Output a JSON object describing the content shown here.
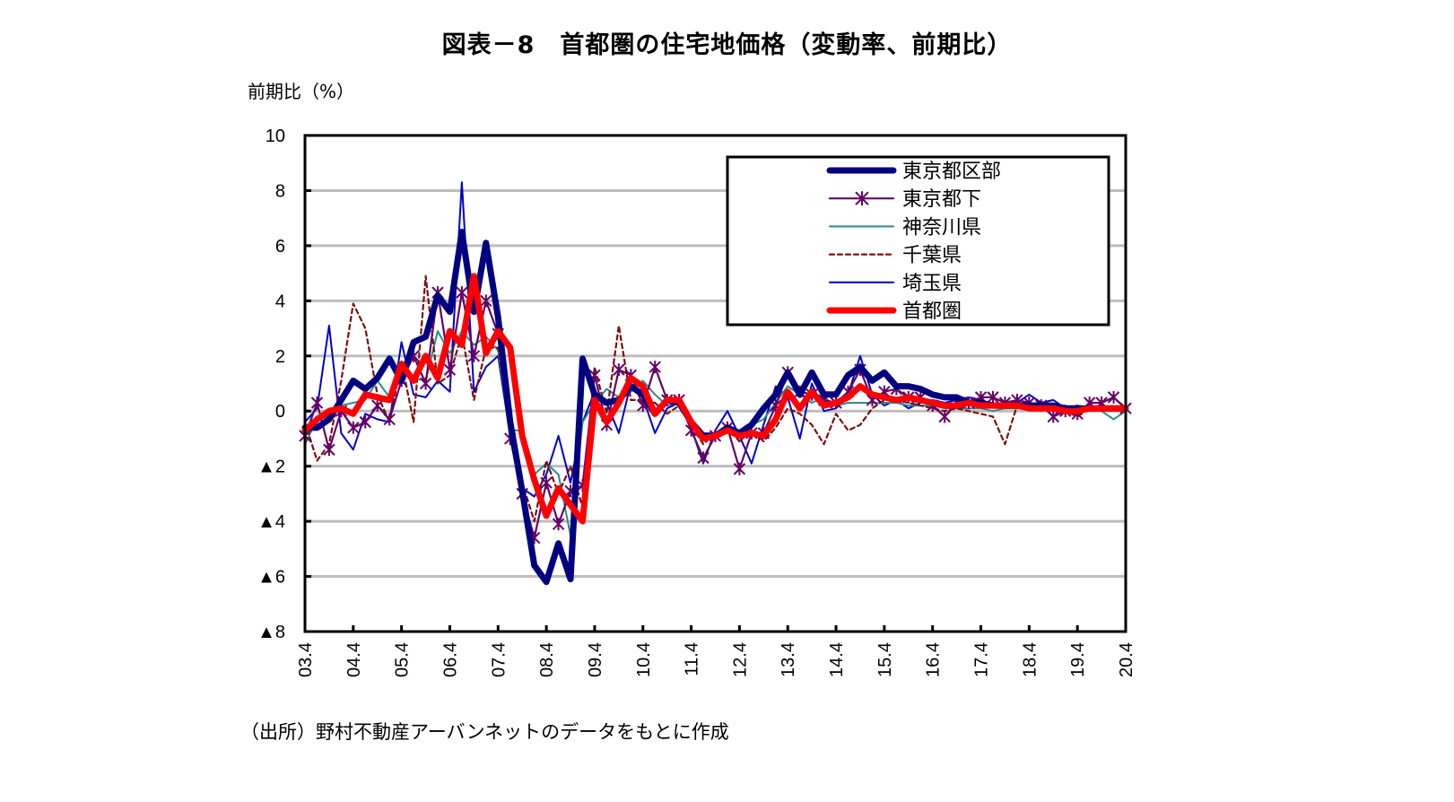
{
  "chart_data": {
    "type": "line",
    "title": "図表－8　首都圏の住宅地価格（変動率、前期比）",
    "ylabel": "前期比（%）",
    "xlabel": "",
    "source": "（出所）野村不動産アーバンネットのデータをもとに作成",
    "ylim": [
      -8,
      10
    ],
    "yticks": [
      10,
      8,
      6,
      4,
      2,
      0,
      -2,
      -4,
      -6,
      -8
    ],
    "ytick_labels": [
      "10",
      "8",
      "6",
      "4",
      "2",
      "0",
      "▲2",
      "▲4",
      "▲6",
      "▲8"
    ],
    "x_tick_labels": [
      "03.4",
      "04.4",
      "05.4",
      "06.4",
      "07.4",
      "08.4",
      "09.4",
      "10.4",
      "11.4",
      "12.4",
      "13.4",
      "14.4",
      "15.4",
      "16.4",
      "17.4",
      "18.4",
      "19.4",
      "20.4"
    ],
    "quarters_per_label": 4,
    "grid": true,
    "legend_position": "top-right",
    "series": [
      {
        "name": "東京都区部",
        "color": "#000080",
        "style": "thick",
        "values": [
          -0.6,
          -0.6,
          -0.3,
          0.4,
          1.1,
          0.8,
          1.2,
          1.9,
          1.1,
          2.5,
          2.7,
          4.2,
          3.6,
          6.5,
          3.6,
          6.1,
          3.4,
          -0.4,
          -2.9,
          -5.6,
          -6.2,
          -4.8,
          -6.1,
          1.9,
          0.6,
          0.3,
          0.4,
          0.9,
          0.6,
          -0.1,
          0.4,
          0.3,
          -0.4,
          -0.9,
          -0.9,
          -0.6,
          -0.8,
          -0.5,
          0.1,
          0.6,
          1.4,
          0.6,
          1.4,
          0.6,
          0.6,
          1.3,
          1.6,
          1.1,
          1.4,
          0.9,
          0.9,
          0.8,
          0.6,
          0.5,
          0.5,
          0.3,
          0.3,
          0.2,
          0.2,
          0.2,
          0.2,
          0.2,
          0.2,
          0.1,
          0.1,
          0.1,
          0.1,
          0.1,
          0.1
        ]
      },
      {
        "name": "東京都下",
        "color": "#660066",
        "style": "star-marker",
        "values": [
          -0.9,
          0.3,
          -1.4,
          0.0,
          -0.6,
          -0.4,
          0.2,
          -0.3,
          1.1,
          2.0,
          1.0,
          4.3,
          1.5,
          4.3,
          2.0,
          4.0,
          2.8,
          -1.0,
          -3.0,
          -4.6,
          -2.6,
          -4.1,
          -2.9,
          -2.7,
          1.3,
          -0.5,
          1.5,
          1.3,
          0.2,
          1.6,
          0.4,
          0.4,
          -0.7,
          -1.7,
          -0.9,
          -0.6,
          -2.1,
          -0.8,
          -0.8,
          0.2,
          1.4,
          0.7,
          0.6,
          0.4,
          0.3,
          0.7,
          1.5,
          0.4,
          0.7,
          0.8,
          0.5,
          0.5,
          0.2,
          -0.2,
          0.3,
          0.3,
          0.5,
          0.5,
          0.3,
          0.4,
          0.3,
          0.2,
          -0.2,
          0.0,
          -0.1,
          0.3,
          0.3,
          0.5,
          0.1
        ]
      },
      {
        "name": "神奈川県",
        "color": "#2E8B8B",
        "style": "thin",
        "values": [
          -1.2,
          -0.3,
          -0.2,
          0.2,
          0.3,
          0.4,
          1.1,
          0.5,
          1.4,
          1.2,
          1.1,
          2.9,
          2.1,
          2.9,
          2.4,
          2.7,
          2.2,
          -0.7,
          -0.7,
          -2.3,
          -1.9,
          -2.3,
          -4.5,
          -0.4,
          0.3,
          0.8,
          0.5,
          0.7,
          1.1,
          0.6,
          0.2,
          0.3,
          -0.5,
          -0.8,
          -0.8,
          -0.6,
          -0.7,
          -0.5,
          -0.3,
          0.3,
          0.9,
          0.6,
          0.3,
          0.5,
          0.2,
          0.3,
          0.3,
          0.3,
          0.3,
          0.3,
          0.2,
          0.2,
          0.2,
          0.1,
          0.1,
          0.1,
          0.1,
          0.0,
          0.1,
          0.1,
          0.1,
          0.1,
          0.0,
          0.0,
          0.0,
          0.1,
          0.0,
          -0.3,
          0.0
        ]
      },
      {
        "name": "千葉県",
        "color": "#7B1010",
        "style": "dashed",
        "values": [
          -0.4,
          -1.8,
          -1.2,
          1.1,
          3.9,
          3.0,
          0.6,
          -0.4,
          1.8,
          -0.4,
          4.9,
          1.0,
          1.3,
          2.8,
          0.4,
          2.3,
          2.3,
          -0.6,
          -2.6,
          -4.0,
          -1.8,
          -3.0,
          -2.0,
          -3.5,
          1.6,
          -0.1,
          3.1,
          0.4,
          0.4,
          0.3,
          -0.1,
          0.2,
          -0.5,
          -1.2,
          -0.8,
          -0.6,
          -1.1,
          -0.7,
          -1.1,
          -0.6,
          0.1,
          -0.1,
          -0.5,
          -1.2,
          -0.1,
          -0.7,
          -0.5,
          0.1,
          0.4,
          0.4,
          0.3,
          0.2,
          0.1,
          0.0,
          0.1,
          0.0,
          -0.1,
          -0.2,
          -1.2,
          0.2,
          0.2,
          0.2,
          0.1,
          0.0,
          -0.2,
          0.1,
          0.1,
          0.2,
          0.0
        ]
      },
      {
        "name": "埼玉県",
        "color": "#0000CC",
        "style": "thin",
        "values": [
          -0.4,
          0.1,
          3.1,
          -0.8,
          -1.4,
          -0.1,
          -0.3,
          -0.4,
          2.5,
          0.6,
          0.5,
          1.1,
          0.7,
          8.3,
          0.7,
          1.6,
          2.0,
          -0.9,
          -2.8,
          -3.1,
          -2.3,
          -0.9,
          -2.6,
          -0.4,
          0.7,
          0.3,
          -0.8,
          1.0,
          0.5,
          -0.8,
          0.1,
          0.3,
          -0.6,
          -1.9,
          -0.7,
          0.0,
          -0.9,
          -1.9,
          -0.5,
          0.9,
          0.5,
          -1.0,
          1.0,
          0.0,
          0.1,
          0.6,
          2.0,
          0.6,
          0.2,
          0.4,
          0.1,
          0.3,
          0.4,
          0.3,
          0.4,
          0.5,
          0.4,
          0.2,
          0.3,
          0.3,
          0.6,
          0.3,
          0.4,
          0.1,
          0.2,
          0.1,
          0.1,
          0.1,
          0.1
        ]
      },
      {
        "name": "首都圏",
        "color": "#FF0000",
        "style": "thick",
        "values": [
          -0.7,
          -0.3,
          0.0,
          0.1,
          -0.1,
          0.6,
          0.5,
          0.4,
          1.7,
          1.1,
          2.0,
          1.2,
          2.9,
          2.4,
          4.9,
          2.1,
          2.9,
          2.3,
          -0.9,
          -2.5,
          -3.8,
          -2.8,
          -3.4,
          -4.0,
          0.4,
          -0.4,
          0.3,
          1.2,
          0.9,
          -0.1,
          0.4,
          0.4,
          -0.4,
          -1.0,
          -0.9,
          -0.7,
          -0.9,
          -0.8,
          -0.9,
          -0.3,
          0.7,
          0.1,
          0.7,
          0.2,
          0.3,
          0.5,
          0.9,
          0.6,
          0.5,
          0.4,
          0.5,
          0.4,
          0.3,
          0.2,
          0.2,
          0.3,
          0.2,
          0.2,
          0.2,
          0.2,
          0.1,
          0.1,
          0.1,
          0.0,
          0.0,
          0.1,
          0.1,
          0.1,
          0.1
        ]
      }
    ]
  }
}
